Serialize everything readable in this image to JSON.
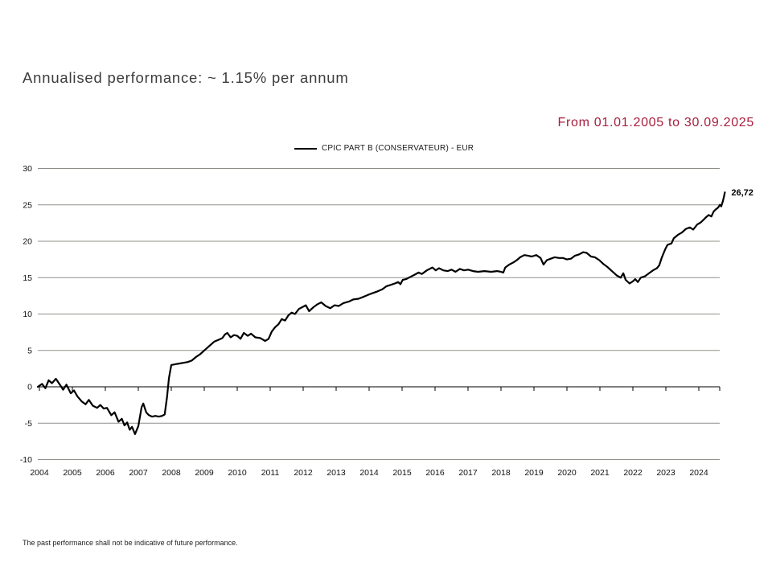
{
  "header": {
    "title": "Annualised performance: ~ 1.15% per annum"
  },
  "period": {
    "label": "From 01.01.2005 to 30.09.2025",
    "color": "#a81e3d"
  },
  "legend": {
    "items": [
      {
        "label": "CPIC PART B (CONSERVATEUR) - EUR",
        "color": "#000000"
      }
    ]
  },
  "footer": {
    "disclaimer": "The past performance shall not be indicative of future performance."
  },
  "chart_data": {
    "type": "line",
    "title": "Annualised performance: ~ 1.15% per annum",
    "xlabel": "",
    "ylabel": "",
    "ylim": [
      -10,
      30
    ],
    "y_ticks": [
      30,
      25,
      20,
      15,
      10,
      5,
      0,
      -5,
      -10
    ],
    "x_ticks": [
      2004,
      2005,
      2006,
      2007,
      2008,
      2009,
      2010,
      2011,
      2012,
      2013,
      2014,
      2015,
      2016,
      2017,
      2018,
      2019,
      2020,
      2021,
      2022,
      2023,
      2024
    ],
    "grid": "horizontal",
    "gridline_color": "#8f8f8a",
    "axis_color": "#000000",
    "legend_position": "top",
    "end_label": "26,72",
    "end_value": 26.72,
    "series": [
      {
        "name": "CPIC PART B (CONSERVATEUR) - EUR",
        "color": "#000000",
        "points": [
          [
            2003.95,
            0.0
          ],
          [
            2004.08,
            0.4
          ],
          [
            2004.18,
            -0.2
          ],
          [
            2004.28,
            0.9
          ],
          [
            2004.38,
            0.5
          ],
          [
            2004.5,
            1.1
          ],
          [
            2004.62,
            0.3
          ],
          [
            2004.72,
            -0.4
          ],
          [
            2004.82,
            0.3
          ],
          [
            2004.95,
            -0.9
          ],
          [
            2005.05,
            -0.5
          ],
          [
            2005.15,
            -1.3
          ],
          [
            2005.28,
            -2.0
          ],
          [
            2005.4,
            -2.4
          ],
          [
            2005.5,
            -1.8
          ],
          [
            2005.62,
            -2.6
          ],
          [
            2005.75,
            -2.9
          ],
          [
            2005.85,
            -2.5
          ],
          [
            2005.95,
            -3.0
          ],
          [
            2006.05,
            -2.9
          ],
          [
            2006.18,
            -3.9
          ],
          [
            2006.28,
            -3.5
          ],
          [
            2006.4,
            -4.8
          ],
          [
            2006.5,
            -4.4
          ],
          [
            2006.58,
            -5.3
          ],
          [
            2006.66,
            -4.9
          ],
          [
            2006.74,
            -5.9
          ],
          [
            2006.81,
            -5.5
          ],
          [
            2006.9,
            -6.5
          ],
          [
            2007.0,
            -5.4
          ],
          [
            2007.1,
            -2.8
          ],
          [
            2007.15,
            -2.3
          ],
          [
            2007.24,
            -3.5
          ],
          [
            2007.32,
            -3.9
          ],
          [
            2007.42,
            -4.1
          ],
          [
            2007.52,
            -4.0
          ],
          [
            2007.62,
            -4.1
          ],
          [
            2007.72,
            -4.0
          ],
          [
            2007.8,
            -3.8
          ],
          [
            2007.87,
            -1.4
          ],
          [
            2007.93,
            1.2
          ],
          [
            2008.0,
            3.0
          ],
          [
            2008.12,
            3.1
          ],
          [
            2008.25,
            3.2
          ],
          [
            2008.38,
            3.3
          ],
          [
            2008.5,
            3.4
          ],
          [
            2008.62,
            3.6
          ],
          [
            2008.75,
            4.1
          ],
          [
            2008.88,
            4.5
          ],
          [
            2009.0,
            5.0
          ],
          [
            2009.15,
            5.6
          ],
          [
            2009.3,
            6.2
          ],
          [
            2009.45,
            6.5
          ],
          [
            2009.55,
            6.7
          ],
          [
            2009.63,
            7.2
          ],
          [
            2009.7,
            7.4
          ],
          [
            2009.8,
            6.8
          ],
          [
            2009.9,
            7.1
          ],
          [
            2010.0,
            7.0
          ],
          [
            2010.1,
            6.6
          ],
          [
            2010.2,
            7.4
          ],
          [
            2010.32,
            7.0
          ],
          [
            2010.42,
            7.3
          ],
          [
            2010.55,
            6.8
          ],
          [
            2010.7,
            6.7
          ],
          [
            2010.85,
            6.3
          ],
          [
            2010.95,
            6.6
          ],
          [
            2011.05,
            7.6
          ],
          [
            2011.15,
            8.2
          ],
          [
            2011.25,
            8.6
          ],
          [
            2011.35,
            9.3
          ],
          [
            2011.45,
            9.1
          ],
          [
            2011.55,
            9.8
          ],
          [
            2011.65,
            10.2
          ],
          [
            2011.75,
            10.0
          ],
          [
            2011.87,
            10.7
          ],
          [
            2012.0,
            11.0
          ],
          [
            2012.08,
            11.2
          ],
          [
            2012.18,
            10.4
          ],
          [
            2012.3,
            10.9
          ],
          [
            2012.42,
            11.3
          ],
          [
            2012.55,
            11.6
          ],
          [
            2012.68,
            11.1
          ],
          [
            2012.82,
            10.8
          ],
          [
            2012.95,
            11.2
          ],
          [
            2013.08,
            11.1
          ],
          [
            2013.22,
            11.5
          ],
          [
            2013.38,
            11.7
          ],
          [
            2013.52,
            12.0
          ],
          [
            2013.68,
            12.1
          ],
          [
            2013.85,
            12.4
          ],
          [
            2014.0,
            12.7
          ],
          [
            2014.12,
            12.9
          ],
          [
            2014.25,
            13.1
          ],
          [
            2014.4,
            13.4
          ],
          [
            2014.52,
            13.8
          ],
          [
            2014.65,
            14.0
          ],
          [
            2014.78,
            14.2
          ],
          [
            2014.88,
            14.4
          ],
          [
            2014.95,
            14.1
          ],
          [
            2015.02,
            14.7
          ],
          [
            2015.12,
            14.8
          ],
          [
            2015.25,
            15.1
          ],
          [
            2015.38,
            15.4
          ],
          [
            2015.5,
            15.7
          ],
          [
            2015.6,
            15.5
          ],
          [
            2015.75,
            16.0
          ],
          [
            2015.92,
            16.4
          ],
          [
            2016.02,
            16.0
          ],
          [
            2016.12,
            16.3
          ],
          [
            2016.25,
            16.0
          ],
          [
            2016.38,
            15.9
          ],
          [
            2016.5,
            16.1
          ],
          [
            2016.62,
            15.8
          ],
          [
            2016.75,
            16.2
          ],
          [
            2016.88,
            16.0
          ],
          [
            2017.0,
            16.1
          ],
          [
            2017.15,
            15.9
          ],
          [
            2017.3,
            15.8
          ],
          [
            2017.5,
            15.9
          ],
          [
            2017.7,
            15.8
          ],
          [
            2017.88,
            15.9
          ],
          [
            2018.0,
            15.8
          ],
          [
            2018.07,
            15.7
          ],
          [
            2018.13,
            16.4
          ],
          [
            2018.25,
            16.8
          ],
          [
            2018.38,
            17.1
          ],
          [
            2018.48,
            17.4
          ],
          [
            2018.58,
            17.8
          ],
          [
            2018.71,
            18.1
          ],
          [
            2018.83,
            18.0
          ],
          [
            2018.93,
            17.9
          ],
          [
            2019.07,
            18.1
          ],
          [
            2019.2,
            17.7
          ],
          [
            2019.29,
            16.8
          ],
          [
            2019.39,
            17.4
          ],
          [
            2019.51,
            17.6
          ],
          [
            2019.63,
            17.8
          ],
          [
            2019.76,
            17.7
          ],
          [
            2019.88,
            17.7
          ],
          [
            2020.0,
            17.5
          ],
          [
            2020.12,
            17.6
          ],
          [
            2020.24,
            18.0
          ],
          [
            2020.37,
            18.2
          ],
          [
            2020.49,
            18.5
          ],
          [
            2020.6,
            18.4
          ],
          [
            2020.73,
            17.9
          ],
          [
            2020.85,
            17.8
          ],
          [
            2020.98,
            17.4
          ],
          [
            2021.1,
            16.9
          ],
          [
            2021.22,
            16.5
          ],
          [
            2021.34,
            16.0
          ],
          [
            2021.44,
            15.6
          ],
          [
            2021.51,
            15.3
          ],
          [
            2021.63,
            15.0
          ],
          [
            2021.71,
            15.6
          ],
          [
            2021.78,
            14.7
          ],
          [
            2021.9,
            14.2
          ],
          [
            2022.0,
            14.5
          ],
          [
            2022.07,
            14.8
          ],
          [
            2022.15,
            14.4
          ],
          [
            2022.24,
            15.0
          ],
          [
            2022.37,
            15.2
          ],
          [
            2022.49,
            15.6
          ],
          [
            2022.61,
            16.0
          ],
          [
            2022.73,
            16.3
          ],
          [
            2022.8,
            16.7
          ],
          [
            2022.88,
            17.8
          ],
          [
            2022.98,
            18.9
          ],
          [
            2023.05,
            19.5
          ],
          [
            2023.17,
            19.7
          ],
          [
            2023.24,
            20.4
          ],
          [
            2023.37,
            20.9
          ],
          [
            2023.49,
            21.2
          ],
          [
            2023.61,
            21.7
          ],
          [
            2023.73,
            21.9
          ],
          [
            2023.83,
            21.6
          ],
          [
            2023.95,
            22.3
          ],
          [
            2024.06,
            22.6
          ],
          [
            2024.15,
            23.0
          ],
          [
            2024.22,
            23.3
          ],
          [
            2024.3,
            23.6
          ],
          [
            2024.38,
            23.4
          ],
          [
            2024.45,
            24.1
          ],
          [
            2024.52,
            24.4
          ],
          [
            2024.58,
            24.6
          ],
          [
            2024.64,
            25.0
          ],
          [
            2024.68,
            24.8
          ],
          [
            2024.73,
            25.5
          ],
          [
            2024.76,
            26.1
          ],
          [
            2024.79,
            26.72
          ]
        ]
      }
    ]
  }
}
